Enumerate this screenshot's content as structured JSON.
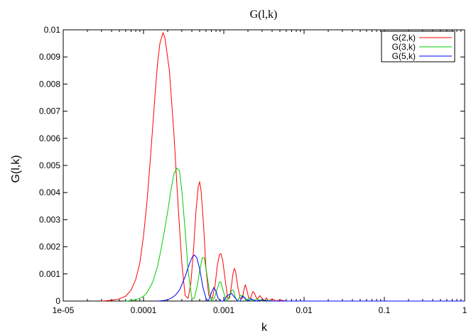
{
  "chart_data": {
    "type": "line",
    "title": "G(l,k)",
    "xlabel": "k",
    "ylabel": "G(l,k)",
    "x_scale": "log",
    "xlim": [
      1e-05,
      1
    ],
    "ylim": [
      0,
      0.01
    ],
    "x_tick_values": [
      1e-05,
      0.0001,
      0.001,
      0.01,
      0.1,
      1
    ],
    "x_tick_labels": [
      "1e-05",
      "0.0001",
      "0.001",
      "0.01",
      "0.1",
      "1"
    ],
    "y_tick_values": [
      0,
      0.001,
      0.002,
      0.003,
      0.004,
      0.005,
      0.006,
      0.007,
      0.008,
      0.009,
      0.01
    ],
    "y_tick_labels": [
      "0",
      "0.001",
      "0.002",
      "0.003",
      "0.004",
      "0.005",
      "0.006",
      "0.007",
      "0.008",
      "0.009",
      "0.01"
    ],
    "grid": false,
    "legend_position": "top-right",
    "series": [
      {
        "name": "G(2,k)",
        "color": "#ff0000",
        "points": [
          [
            3e-05,
            0.0
          ],
          [
            4e-05,
            3e-05
          ],
          [
            5e-05,
            8e-05
          ],
          [
            6e-05,
            0.00018
          ],
          [
            7e-05,
            0.0004
          ],
          [
            8e-05,
            0.0008
          ],
          [
            9e-05,
            0.0014
          ],
          [
            0.0001,
            0.0024
          ],
          [
            0.00011,
            0.0036
          ],
          [
            0.00012,
            0.005
          ],
          [
            0.00013,
            0.0064
          ],
          [
            0.00014,
            0.0077
          ],
          [
            0.00015,
            0.0088
          ],
          [
            0.00016,
            0.0095
          ],
          [
            0.000175,
            0.0099
          ],
          [
            0.000185,
            0.0097
          ],
          [
            0.00021,
            0.0085
          ],
          [
            0.00024,
            0.0061
          ],
          [
            0.00027,
            0.0035
          ],
          [
            0.0003,
            0.0014
          ],
          [
            0.00033,
            0.0002
          ],
          [
            0.00036,
            0.0001
          ],
          [
            0.00039,
            0.0007
          ],
          [
            0.00042,
            0.0019
          ],
          [
            0.00045,
            0.0033
          ],
          [
            0.00048,
            0.0042
          ],
          [
            0.0005,
            0.0044
          ],
          [
            0.00052,
            0.0041
          ],
          [
            0.00056,
            0.0028
          ],
          [
            0.0006,
            0.0012
          ],
          [
            0.00065,
            0.0002
          ],
          [
            0.00072,
            0.0001
          ],
          [
            0.00078,
            0.0006
          ],
          [
            0.00083,
            0.0013
          ],
          [
            0.00088,
            0.0017
          ],
          [
            0.00092,
            0.00175
          ],
          [
            0.00097,
            0.0015
          ],
          [
            0.00105,
            0.0007
          ],
          [
            0.00112,
            0.0001
          ],
          [
            0.00118,
            0.0001
          ],
          [
            0.00125,
            0.0006
          ],
          [
            0.0013,
            0.001
          ],
          [
            0.00135,
            0.0012
          ],
          [
            0.0014,
            0.0011
          ],
          [
            0.0015,
            0.0005
          ],
          [
            0.0016,
            0.0001
          ],
          [
            0.0017,
            0.0001
          ],
          [
            0.00178,
            0.0004
          ],
          [
            0.00185,
            0.0006
          ],
          [
            0.0019,
            0.0005
          ],
          [
            0.00205,
            0.0001
          ],
          [
            0.00215,
            0.0001
          ],
          [
            0.0023,
            0.00035
          ],
          [
            0.0024,
            0.0003
          ],
          [
            0.0026,
            5e-05
          ],
          [
            0.0028,
            0.0002
          ],
          [
            0.003,
            0.0001
          ],
          [
            0.0032,
            0.0
          ],
          [
            0.0034,
            0.00012
          ],
          [
            0.0036,
            0.0
          ],
          [
            0.004,
            8e-05
          ],
          [
            0.0045,
            0.0
          ],
          [
            0.005,
            4e-05
          ],
          [
            0.006,
            0.0
          ],
          [
            0.007,
            0.0
          ],
          [
            0.01,
            0.0
          ],
          [
            0.1,
            0.0
          ],
          [
            1,
            0.0
          ]
        ]
      },
      {
        "name": "G(3,k)",
        "color": "#00cc00",
        "points": [
          [
            6e-05,
            0.0
          ],
          [
            7e-05,
            2e-05
          ],
          [
            8e-05,
            5e-05
          ],
          [
            9e-05,
            0.0001
          ],
          [
            0.0001,
            0.00018
          ],
          [
            0.00011,
            0.0003
          ],
          [
            0.00012,
            0.0005
          ],
          [
            0.00013,
            0.0007
          ],
          [
            0.00014,
            0.001
          ],
          [
            0.00015,
            0.0013
          ],
          [
            0.00016,
            0.0017
          ],
          [
            0.00017,
            0.0021
          ],
          [
            0.00018,
            0.0025
          ],
          [
            0.0002,
            0.0033
          ],
          [
            0.00022,
            0.0041
          ],
          [
            0.00024,
            0.0047
          ],
          [
            0.00026,
            0.0049
          ],
          [
            0.00028,
            0.0048
          ],
          [
            0.0003,
            0.0041
          ],
          [
            0.00033,
            0.0026
          ],
          [
            0.00036,
            0.0011
          ],
          [
            0.0004,
            0.0001
          ],
          [
            0.00043,
            0.0001
          ],
          [
            0.00047,
            0.0006
          ],
          [
            0.0005,
            0.0011
          ],
          [
            0.00054,
            0.0016
          ],
          [
            0.00057,
            0.0016
          ],
          [
            0.0006,
            0.0012
          ],
          [
            0.00066,
            0.0004
          ],
          [
            0.0007,
            0.0
          ],
          [
            0.00076,
            0.0001
          ],
          [
            0.00082,
            0.0004
          ],
          [
            0.00088,
            0.0007
          ],
          [
            0.00092,
            0.0007
          ],
          [
            0.00098,
            0.0004
          ],
          [
            0.00105,
            0.0001
          ],
          [
            0.0011,
            0.0
          ],
          [
            0.00118,
            0.0002
          ],
          [
            0.00126,
            0.0004
          ],
          [
            0.00132,
            0.0004
          ],
          [
            0.0014,
            0.0001
          ],
          [
            0.0015,
            0.0
          ],
          [
            0.0016,
            0.0002
          ],
          [
            0.00175,
            0.0002
          ],
          [
            0.0019,
            0.0
          ],
          [
            0.0021,
            0.00012
          ],
          [
            0.0023,
            0.0
          ],
          [
            0.0026,
            8e-05
          ],
          [
            0.0029,
            0.0
          ],
          [
            0.0033,
            4e-05
          ],
          [
            0.004,
            0.0
          ],
          [
            0.01,
            0.0
          ],
          [
            0.1,
            0.0
          ],
          [
            1,
            0.0
          ]
        ]
      },
      {
        "name": "G(5,k)",
        "color": "#0000ff",
        "points": [
          [
            0.00015,
            0.0
          ],
          [
            0.00018,
            2e-05
          ],
          [
            0.0002,
            5e-05
          ],
          [
            0.00022,
            0.0001
          ],
          [
            0.00025,
            0.00022
          ],
          [
            0.00028,
            0.0004
          ],
          [
            0.0003,
            0.0006
          ],
          [
            0.00033,
            0.0009
          ],
          [
            0.00036,
            0.00125
          ],
          [
            0.0004,
            0.0016
          ],
          [
            0.00043,
            0.0017
          ],
          [
            0.00046,
            0.0016
          ],
          [
            0.0005,
            0.0012
          ],
          [
            0.00055,
            0.0005
          ],
          [
            0.0006,
            0.0001
          ],
          [
            0.00064,
            0.0
          ],
          [
            0.0007,
            0.0003
          ],
          [
            0.00075,
            0.0005
          ],
          [
            0.00079,
            0.0004
          ],
          [
            0.00085,
            0.0001
          ],
          [
            0.00092,
            0.0
          ],
          [
            0.001,
            0.0
          ],
          [
            0.0011,
            0.0002
          ],
          [
            0.00125,
            0.00028
          ],
          [
            0.0014,
            0.0001
          ],
          [
            0.0015,
            0.0
          ],
          [
            0.0016,
            0.0
          ],
          [
            0.0017,
            0.00018
          ],
          [
            0.00185,
            0.0001
          ],
          [
            0.002,
            0.0
          ],
          [
            0.0022,
            8e-05
          ],
          [
            0.0025,
            0.0
          ],
          [
            0.003,
            4e-05
          ],
          [
            0.0035,
            0.0
          ],
          [
            0.01,
            0.0
          ],
          [
            0.1,
            0.0
          ],
          [
            1,
            0.0
          ]
        ]
      }
    ]
  }
}
